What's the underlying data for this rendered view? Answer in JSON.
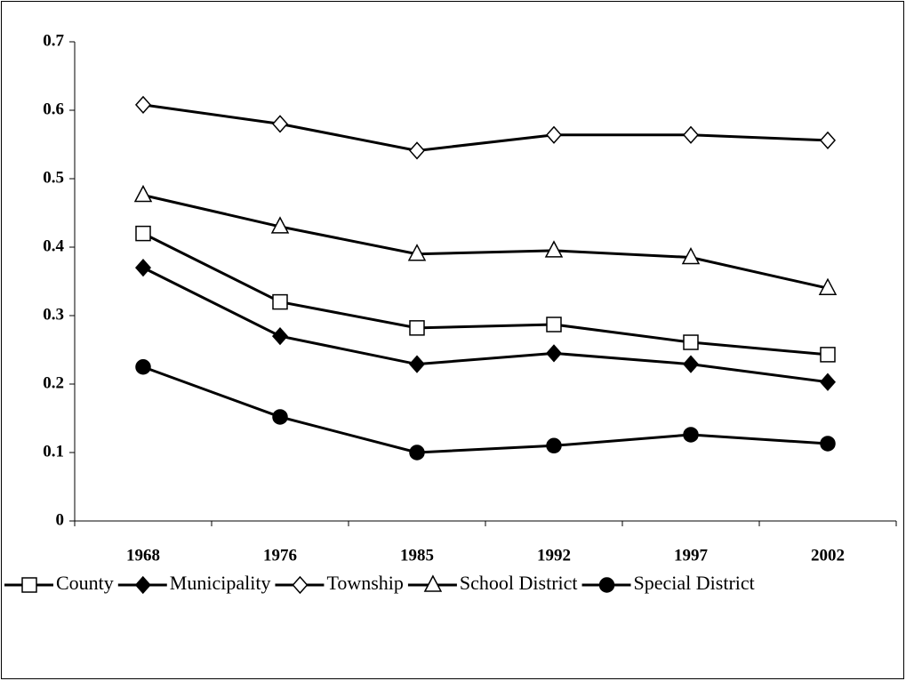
{
  "chart_data": {
    "type": "line",
    "categories": [
      "1968",
      "1976",
      "1985",
      "1992",
      "1997",
      "2002"
    ],
    "series": [
      {
        "name": "County",
        "color": "#000000",
        "marker": "square-open",
        "values": [
          0.42,
          0.32,
          0.282,
          0.287,
          0.261,
          0.243
        ]
      },
      {
        "name": "Municipality",
        "color": "#000000",
        "marker": "diamond-filled",
        "values": [
          0.37,
          0.27,
          0.229,
          0.245,
          0.229,
          0.203
        ]
      },
      {
        "name": "Township",
        "color": "#000000",
        "marker": "diamond-open",
        "values": [
          0.608,
          0.58,
          0.541,
          0.564,
          0.564,
          0.556
        ]
      },
      {
        "name": "School District",
        "color": "#000000",
        "marker": "triangle-open",
        "values": [
          0.476,
          0.43,
          0.39,
          0.395,
          0.385,
          0.34
        ]
      },
      {
        "name": "Special District",
        "color": "#000000",
        "marker": "circle-filled",
        "values": [
          0.225,
          0.152,
          0.1,
          0.11,
          0.126,
          0.113
        ]
      }
    ],
    "ylim": [
      0,
      0.7
    ],
    "yticks": [
      0,
      0.1,
      0.2,
      0.3,
      0.4,
      0.5,
      0.6,
      0.7
    ],
    "grid": false,
    "legend": "bottom"
  }
}
